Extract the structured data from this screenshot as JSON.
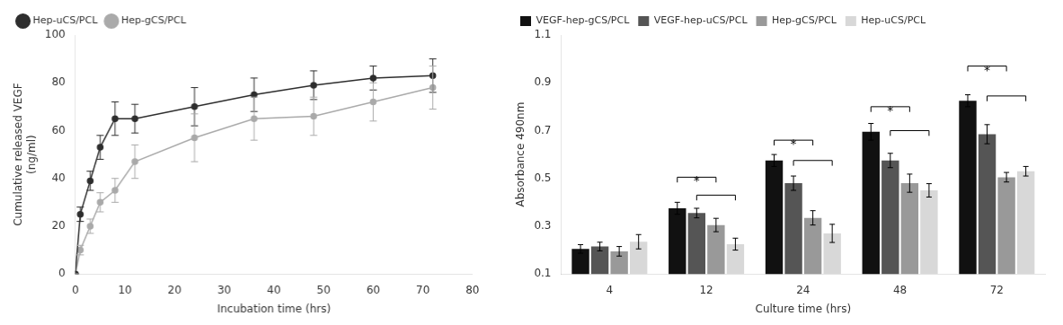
{
  "chart_data": [
    {
      "type": "line",
      "xlabel": "Incubation time (hrs)",
      "ylabel": "Cumulative released VEGF\n(ng/ml)",
      "x": [
        0,
        1,
        3,
        5,
        8,
        12,
        24,
        36,
        48,
        60,
        72
      ],
      "series": [
        {
          "name": "Hep-uCS/PCL",
          "color": "#2e2e2e",
          "marker": "circle",
          "values": [
            0,
            25,
            39,
            53,
            65,
            65,
            70,
            75,
            79,
            82,
            83
          ],
          "yerr": [
            0,
            3,
            4,
            5,
            7,
            6,
            8,
            7,
            6,
            5,
            7
          ]
        },
        {
          "name": "Hep-gCS/PCL",
          "color": "#aaaaaa",
          "marker": "circle",
          "values": [
            0,
            10,
            20,
            30,
            35,
            47,
            57,
            65,
            66,
            72,
            78
          ],
          "yerr": [
            0,
            2,
            3,
            4,
            5,
            7,
            10,
            9,
            8,
            8,
            9
          ]
        }
      ],
      "xlim": [
        0,
        80
      ],
      "ylim": [
        0,
        100
      ],
      "xticks": [
        0,
        10,
        20,
        30,
        40,
        50,
        60,
        70,
        80
      ],
      "yticks": [
        0,
        20,
        40,
        60,
        80,
        100
      ],
      "legend": "upper left",
      "grid": false
    },
    {
      "type": "bar",
      "xlabel": "Culture time (hrs)",
      "ylabel": "Absorbance 490nm",
      "categories": [
        "4",
        "12",
        "24",
        "48",
        "72"
      ],
      "series": [
        {
          "name": "VEGF-hep-gCS/PCL",
          "color": "#111111",
          "values": [
            0.205,
            0.375,
            0.575,
            0.695,
            0.825
          ],
          "yerr": [
            0.018,
            0.025,
            0.025,
            0.035,
            0.025
          ]
        },
        {
          "name": "VEGF-hep-uCS/PCL",
          "color": "#555555",
          "values": [
            0.215,
            0.355,
            0.48,
            0.575,
            0.685
          ],
          "yerr": [
            0.018,
            0.02,
            0.03,
            0.03,
            0.04
          ]
        },
        {
          "name": "Hep-gCS/PCL",
          "color": "#999999",
          "values": [
            0.195,
            0.305,
            0.335,
            0.48,
            0.505
          ],
          "yerr": [
            0.02,
            0.028,
            0.03,
            0.038,
            0.02
          ]
        },
        {
          "name": "Hep-uCS/PCL",
          "color": "#d8d8d8",
          "values": [
            0.235,
            0.225,
            0.27,
            0.45,
            0.53
          ],
          "yerr": [
            0.03,
            0.025,
            0.038,
            0.028,
            0.02
          ]
        }
      ],
      "ylim": [
        0.1,
        1.1
      ],
      "yticks": [
        0.1,
        0.3,
        0.5,
        0.7,
        0.9,
        1.1
      ],
      "legend": "upper left",
      "grid": false,
      "annotations": [
        {
          "category": "12",
          "from": "VEGF-hep-gCS/PCL",
          "to": "Hep-gCS/PCL",
          "y": 0.505,
          "label": "*"
        },
        {
          "category": "12",
          "from": "VEGF-hep-uCS/PCL",
          "to": "Hep-uCS/PCL",
          "y": 0.43
        },
        {
          "category": "24",
          "from": "VEGF-hep-gCS/PCL",
          "to": "Hep-gCS/PCL",
          "y": 0.66,
          "label": "*"
        },
        {
          "category": "24",
          "from": "VEGF-hep-uCS/PCL",
          "to": "Hep-uCS/PCL",
          "y": 0.575
        },
        {
          "category": "48",
          "from": "VEGF-hep-gCS/PCL",
          "to": "Hep-gCS/PCL",
          "y": 0.8,
          "label": "*"
        },
        {
          "category": "48",
          "from": "VEGF-hep-uCS/PCL",
          "to": "Hep-uCS/PCL",
          "y": 0.7
        },
        {
          "category": "72",
          "from": "VEGF-hep-gCS/PCL",
          "to": "Hep-gCS/PCL",
          "y": 0.97,
          "label": "*"
        },
        {
          "category": "72",
          "from": "VEGF-hep-uCS/PCL",
          "to": "Hep-uCS/PCL",
          "y": 0.845
        }
      ]
    }
  ]
}
